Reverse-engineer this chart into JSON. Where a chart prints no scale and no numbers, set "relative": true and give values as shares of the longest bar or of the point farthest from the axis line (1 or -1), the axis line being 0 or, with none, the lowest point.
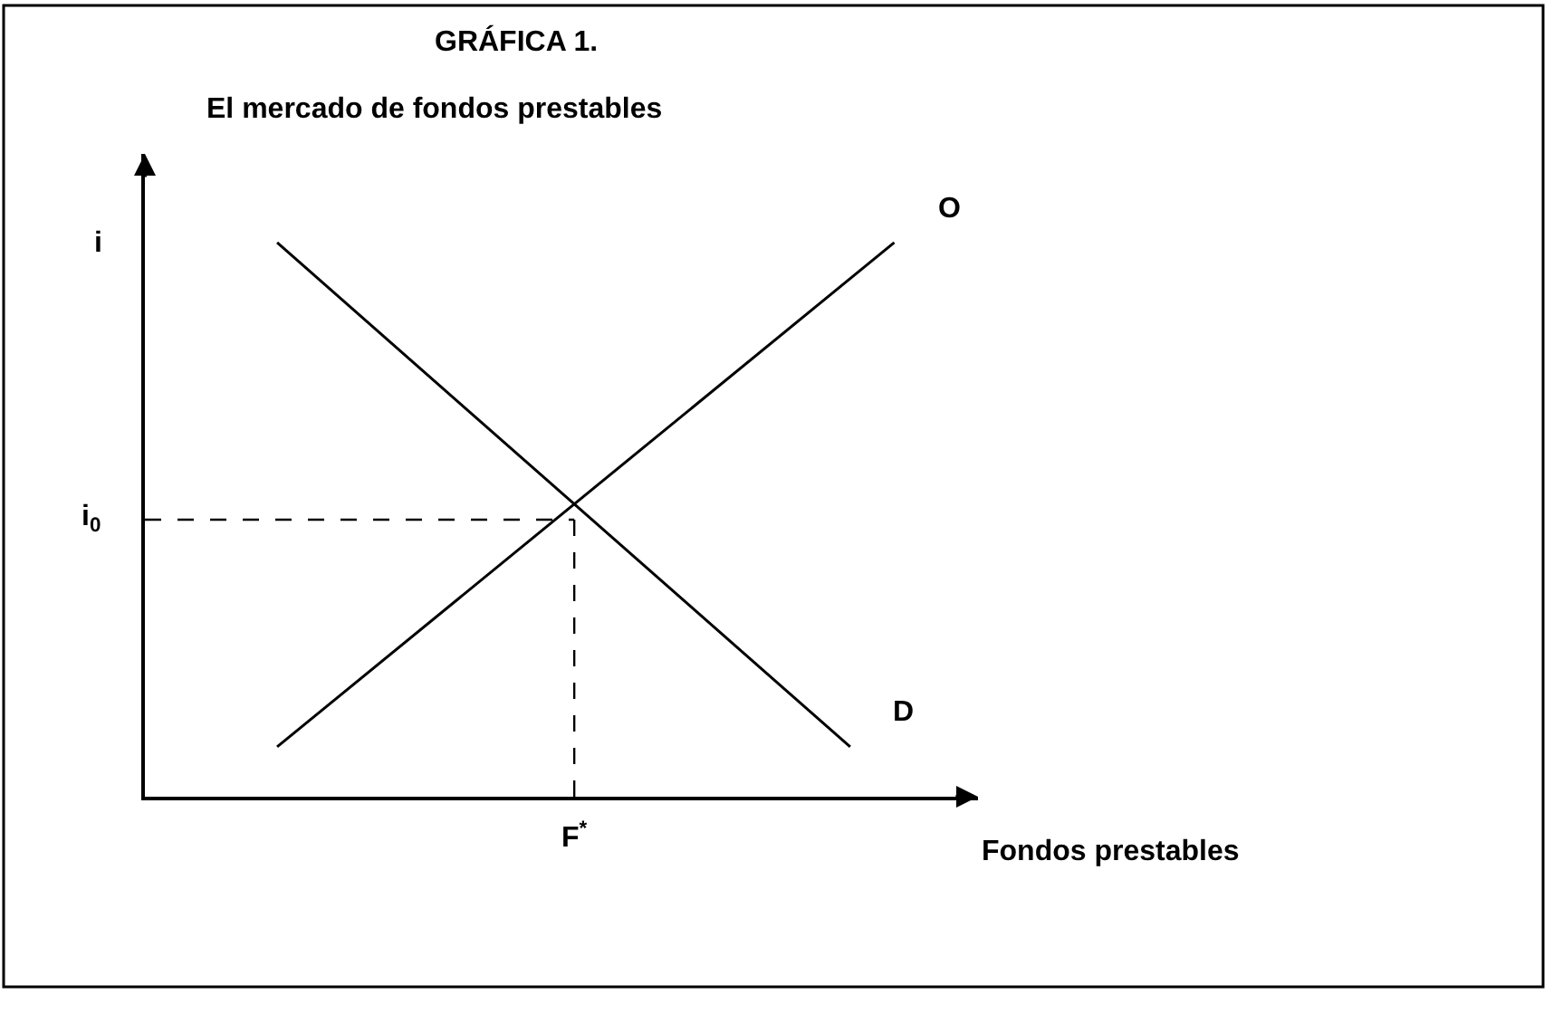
{
  "chart_data": {
    "type": "line",
    "title": "GRÁFICA 1.",
    "subtitle": "El mercado de fondos prestables",
    "xlabel": "Fondos prestables",
    "ylabel": "i",
    "relative": true,
    "legend": false,
    "marker": "none",
    "line_style": "solid",
    "categories": [
      null,
      null,
      null,
      null,
      null,
      null,
      null,
      null,
      null,
      null,
      null,
      null,
      null,
      null,
      null,
      null,
      null,
      null
    ],
    "series": [
      {
        "name": "O",
        "color": "#000000",
        "values": [
          null,
          null,
          null,
          0.09,
          null,
          null,
          null,
          null,
          null,
          null,
          null,
          null,
          null,
          null,
          null,
          null,
          null,
          1
        ]
      },
      {
        "name": "D",
        "color": "#000000",
        "values": [
          null,
          null,
          null,
          1,
          null,
          null,
          null,
          null,
          null,
          null,
          null,
          null,
          null,
          null,
          null,
          null,
          0.09,
          null
        ]
      }
    ],
    "ref_lines": [
      {
        "axis": "y",
        "value": 0.5,
        "label": "i$_{0}$",
        "line_style": "dashed",
        "color": "#000000"
      }
    ],
    "annotations": [
      "F$^{*}$"
    ]
  }
}
